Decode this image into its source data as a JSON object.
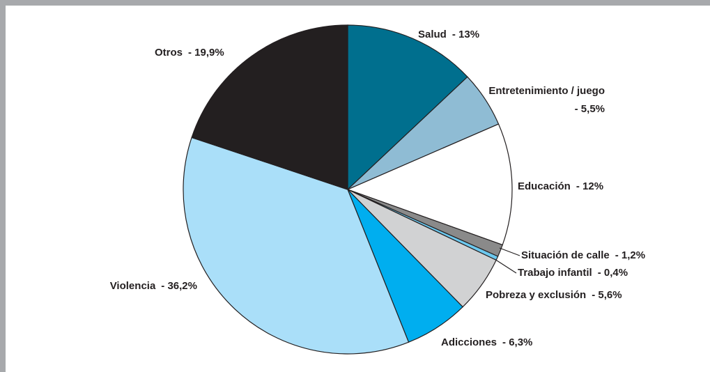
{
  "chart_data": {
    "type": "pie",
    "categories": [
      "Salud",
      "Entretenimiento / juego",
      "Educación",
      "Situación de calle",
      "Trabajo infantil",
      "Pobreza y exclusión",
      "Adicciones",
      "Violencia",
      "Otros"
    ],
    "values": [
      13,
      5.5,
      12,
      1.2,
      0.4,
      5.6,
      6.3,
      36.2,
      19.9
    ],
    "value_labels": [
      "- 13%",
      "- 5,5%",
      "- 12%",
      "- 1,2%",
      "- 0,4%",
      "- 5,6%",
      "- 6,3%",
      "- 36,2%",
      "- 19,9%"
    ],
    "colors": [
      "#006f8e",
      "#8fbcd4",
      "#ffffff",
      "#8a8a8a",
      "#6cc8ee",
      "#d1d2d3",
      "#00aeef",
      "#aadff9",
      "#231f20"
    ]
  }
}
